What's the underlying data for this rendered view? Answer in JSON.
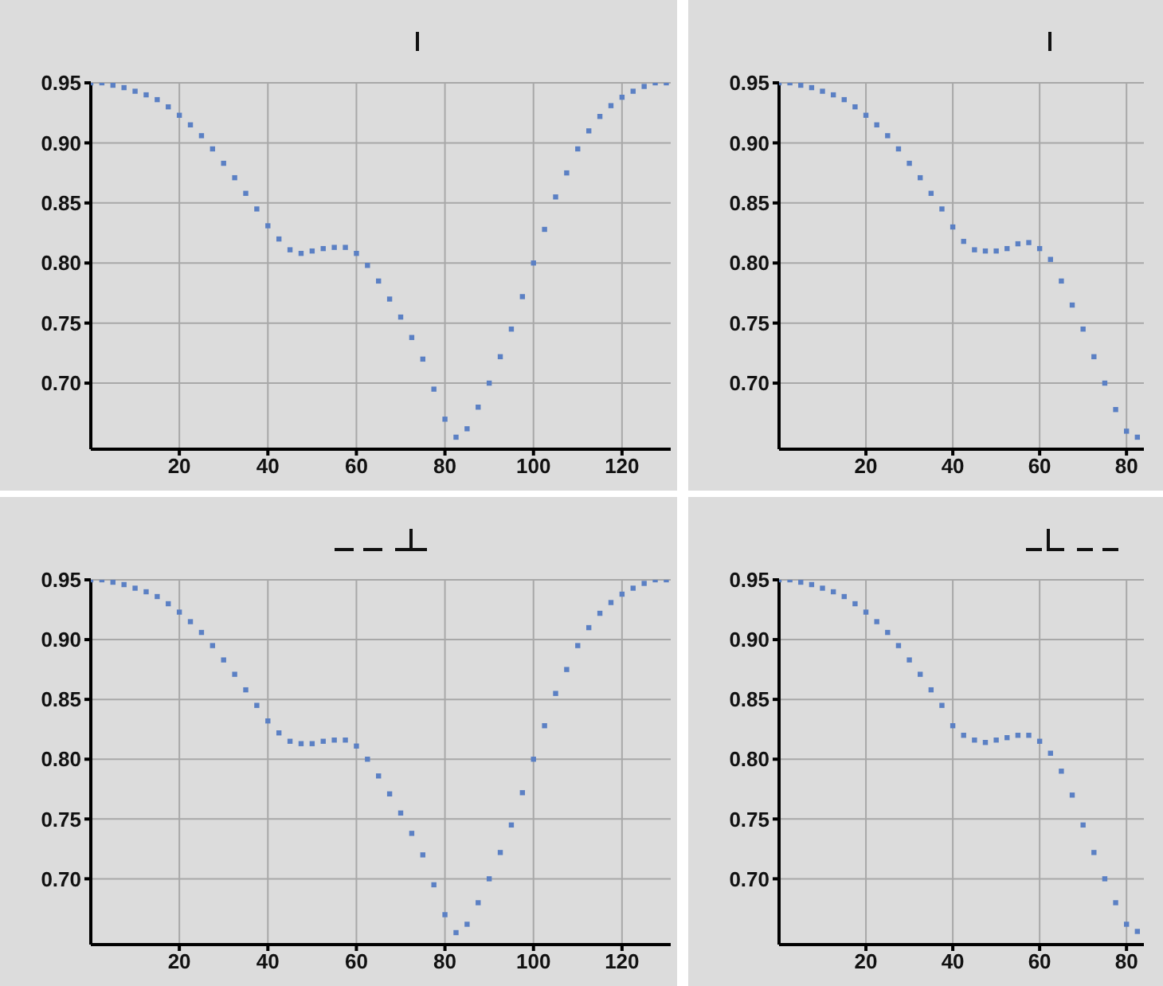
{
  "chart_data": [
    {
      "type": "scatter",
      "marker": "square",
      "grid": true,
      "xlim": [
        0,
        131
      ],
      "xticks": [
        20,
        40,
        60,
        80,
        100,
        120
      ],
      "ylim": [
        0.645,
        0.95
      ],
      "yticks": [
        {
          "value": 0.7,
          "label": "0.70"
        },
        0.75,
        {
          "value": 0.8,
          "label": "0.80"
        },
        0.85,
        {
          "value": 0.9,
          "label": "0.90"
        },
        0.95
      ],
      "x": [
        0,
        2.5,
        5,
        7.5,
        10,
        12.5,
        15,
        17.5,
        20,
        22.5,
        25,
        27.5,
        30,
        32.5,
        35,
        37.5,
        40,
        42.5,
        45,
        47.5,
        50,
        52.5,
        55,
        57.5,
        60,
        62.5,
        65,
        67.5,
        70,
        72.5,
        75,
        77.5,
        80,
        82.5,
        85,
        87.5,
        90,
        92.5,
        95,
        97.5,
        100,
        102.5,
        105,
        107.5,
        110,
        112.5,
        115,
        117.5,
        120,
        122.5,
        125,
        127.5,
        130
      ],
      "series": [
        {
          "color": "#5b80c4",
          "values": [
            0.95,
            0.95,
            0.948,
            0.946,
            0.943,
            0.94,
            0.936,
            0.93,
            0.923,
            0.915,
            0.906,
            0.895,
            0.883,
            0.871,
            0.858,
            0.845,
            0.831,
            0.82,
            0.811,
            0.808,
            0.81,
            0.812,
            0.813,
            0.813,
            0.808,
            0.798,
            0.785,
            0.77,
            0.755,
            0.738,
            0.72,
            0.695,
            0.67,
            0.655,
            0.662,
            0.68,
            0.7,
            0.722,
            0.745,
            0.772,
            0.8,
            0.828,
            0.855,
            0.875,
            0.895,
            0.91,
            0.922,
            0.931,
            0.938,
            0.943,
            0.947,
            0.95,
            0.95
          ]
        }
      ]
    },
    {
      "type": "scatter",
      "marker": "square",
      "grid": true,
      "xlim": [
        0,
        84
      ],
      "xticks": [
        20,
        40,
        60,
        80
      ],
      "ylim": [
        0.645,
        0.95
      ],
      "yticks": [
        {
          "value": 0.7,
          "label": "0.70"
        },
        0.75,
        {
          "value": 0.8,
          "label": "0.80"
        },
        0.85,
        {
          "value": 0.9,
          "label": "0.90"
        },
        0.95
      ],
      "x": [
        0,
        2.5,
        5,
        7.5,
        10,
        12.5,
        15,
        17.5,
        20,
        22.5,
        25,
        27.5,
        30,
        32.5,
        35,
        37.5,
        40,
        42.5,
        45,
        47.5,
        50,
        52.5,
        55,
        57.5,
        60,
        62.5,
        65,
        67.5,
        70,
        72.5,
        75,
        77.5,
        80,
        82.5
      ],
      "series": [
        {
          "color": "#5b80c4",
          "values": [
            0.95,
            0.95,
            0.948,
            0.946,
            0.943,
            0.94,
            0.936,
            0.93,
            0.923,
            0.915,
            0.906,
            0.895,
            0.883,
            0.871,
            0.858,
            0.845,
            0.83,
            0.818,
            0.811,
            0.81,
            0.81,
            0.812,
            0.816,
            0.817,
            0.812,
            0.803,
            0.785,
            0.765,
            0.745,
            0.722,
            0.7,
            0.678,
            0.66,
            0.655
          ]
        }
      ]
    },
    {
      "type": "scatter",
      "marker": "square",
      "grid": true,
      "xlim": [
        0,
        131
      ],
      "xticks": [
        20,
        40,
        60,
        80,
        100,
        120
      ],
      "ylim": [
        0.645,
        0.95
      ],
      "yticks": [
        {
          "value": 0.7,
          "label": "0.70"
        },
        0.75,
        {
          "value": 0.8,
          "label": "0.80"
        },
        0.85,
        {
          "value": 0.9,
          "label": "0.90"
        },
        0.95
      ],
      "x": [
        0,
        2.5,
        5,
        7.5,
        10,
        12.5,
        15,
        17.5,
        20,
        22.5,
        25,
        27.5,
        30,
        32.5,
        35,
        37.5,
        40,
        42.5,
        45,
        47.5,
        50,
        52.5,
        55,
        57.5,
        60,
        62.5,
        65,
        67.5,
        70,
        72.5,
        75,
        77.5,
        80,
        82.5,
        85,
        87.5,
        90,
        92.5,
        95,
        97.5,
        100,
        102.5,
        105,
        107.5,
        110,
        112.5,
        115,
        117.5,
        120,
        122.5,
        125,
        127.5,
        130
      ],
      "series": [
        {
          "color": "#5b80c4",
          "values": [
            0.95,
            0.95,
            0.948,
            0.946,
            0.943,
            0.94,
            0.936,
            0.93,
            0.923,
            0.915,
            0.906,
            0.895,
            0.883,
            0.871,
            0.858,
            0.845,
            0.832,
            0.822,
            0.815,
            0.813,
            0.813,
            0.815,
            0.816,
            0.816,
            0.811,
            0.8,
            0.786,
            0.771,
            0.755,
            0.738,
            0.72,
            0.695,
            0.67,
            0.655,
            0.662,
            0.68,
            0.7,
            0.722,
            0.745,
            0.772,
            0.8,
            0.828,
            0.855,
            0.875,
            0.895,
            0.91,
            0.922,
            0.931,
            0.938,
            0.943,
            0.947,
            0.95,
            0.95
          ]
        }
      ]
    },
    {
      "type": "scatter",
      "marker": "square",
      "grid": true,
      "xlim": [
        0,
        84
      ],
      "xticks": [
        20,
        40,
        60,
        80
      ],
      "ylim": [
        0.645,
        0.95
      ],
      "yticks": [
        {
          "value": 0.7,
          "label": "0.70"
        },
        0.75,
        {
          "value": 0.8,
          "label": "0.80"
        },
        0.85,
        {
          "value": 0.9,
          "label": "0.90"
        },
        0.95
      ],
      "x": [
        0,
        2.5,
        5,
        7.5,
        10,
        12.5,
        15,
        17.5,
        20,
        22.5,
        25,
        27.5,
        30,
        32.5,
        35,
        37.5,
        40,
        42.5,
        45,
        47.5,
        50,
        52.5,
        55,
        57.5,
        60,
        62.5,
        65,
        67.5,
        70,
        72.5,
        75,
        77.5,
        80,
        82.5
      ],
      "series": [
        {
          "color": "#5b80c4",
          "values": [
            0.95,
            0.95,
            0.948,
            0.946,
            0.943,
            0.94,
            0.936,
            0.93,
            0.923,
            0.915,
            0.906,
            0.895,
            0.883,
            0.871,
            0.858,
            0.845,
            0.828,
            0.82,
            0.816,
            0.814,
            0.816,
            0.818,
            0.82,
            0.82,
            0.815,
            0.805,
            0.79,
            0.77,
            0.745,
            0.722,
            0.7,
            0.68,
            0.662,
            0.656
          ]
        }
      ]
    }
  ]
}
